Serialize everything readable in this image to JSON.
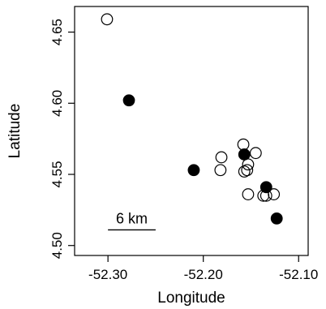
{
  "chart_data": {
    "type": "scatter",
    "xlabel": "Longitude",
    "ylabel": "Latitude",
    "xlim": [
      -52.335,
      -52.09
    ],
    "ylim": [
      4.493,
      4.668
    ],
    "x_ticks": [
      -52.3,
      -52.2,
      -52.1
    ],
    "x_tick_labels": [
      "-52.30",
      "-52.20",
      "-52.10"
    ],
    "y_ticks": [
      4.5,
      4.55,
      4.6,
      4.65
    ],
    "y_tick_labels": [
      "4.50",
      "4.55",
      "4.60",
      "4.65"
    ],
    "series": [
      {
        "marker": "open-circle",
        "color": "#000000",
        "points": [
          [
            -52.301,
            4.659
          ],
          [
            -52.181,
            4.562
          ],
          [
            -52.182,
            4.553
          ],
          [
            -52.158,
            4.571
          ],
          [
            -52.157,
            4.552
          ],
          [
            -52.153,
            4.557
          ],
          [
            -52.154,
            4.553
          ],
          [
            -52.145,
            4.565
          ],
          [
            -52.153,
            4.536
          ],
          [
            -52.137,
            4.535
          ],
          [
            -52.134,
            4.535
          ],
          [
            -52.126,
            4.536
          ]
        ]
      },
      {
        "marker": "filled-circle",
        "color": "#000000",
        "points": [
          [
            -52.278,
            4.602
          ],
          [
            -52.21,
            4.553
          ],
          [
            -52.157,
            4.564
          ],
          [
            -52.134,
            4.541
          ],
          [
            -52.123,
            4.519
          ]
        ]
      }
    ],
    "scale_bar": {
      "label": "6 km",
      "from": -52.3,
      "to": -52.25,
      "y": 4.511
    },
    "grid": false,
    "legend": "none"
  }
}
